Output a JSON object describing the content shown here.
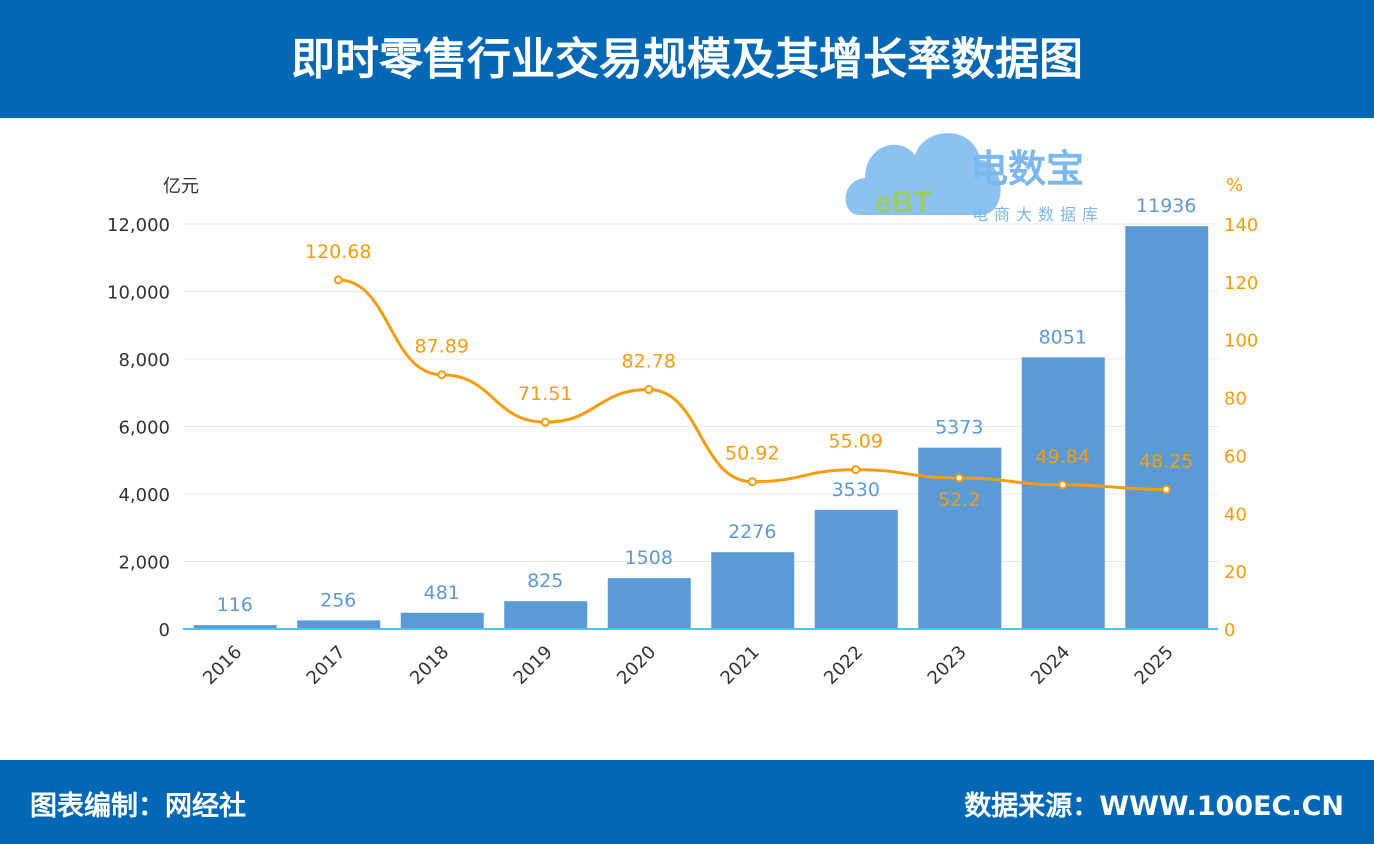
{
  "title": "即时零售行业交易规模及其增长率数据图",
  "footer": {
    "left": "图表编制：网经社",
    "right": "数据来源：WWW.100EC.CN"
  },
  "logo": {
    "name": "电数宝",
    "subtitle": "电商大数据库",
    "mark": "eBT"
  },
  "colors": {
    "bar": "#5b9bd5",
    "line": "#f59c0f",
    "header": "#0268b6"
  },
  "chart_data": {
    "type": "bar+line",
    "categories": [
      "2016",
      "2017",
      "2018",
      "2019",
      "2020",
      "2021",
      "2022",
      "2023",
      "2024",
      "2025"
    ],
    "series": [
      {
        "type": "bar",
        "axis": "left",
        "values": [
          116,
          256,
          481,
          825,
          1508,
          2276,
          3530,
          5373,
          8051,
          11936
        ]
      },
      {
        "type": "line",
        "axis": "right",
        "values": [
          null,
          120.68,
          87.89,
          71.51,
          82.78,
          50.92,
          55.09,
          52.2,
          49.84,
          48.25
        ]
      }
    ],
    "y_left": {
      "unit": "亿元",
      "range": [
        0,
        12000
      ],
      "ticks": [
        "0",
        "2,000",
        "4,000",
        "6,000",
        "8,000",
        "10,000",
        "12,000"
      ]
    },
    "y_right": {
      "unit": "%",
      "range": [
        0,
        140
      ],
      "ticks": [
        "0",
        "20",
        "40",
        "60",
        "80",
        "100",
        "120",
        "140"
      ]
    },
    "grid": true
  }
}
